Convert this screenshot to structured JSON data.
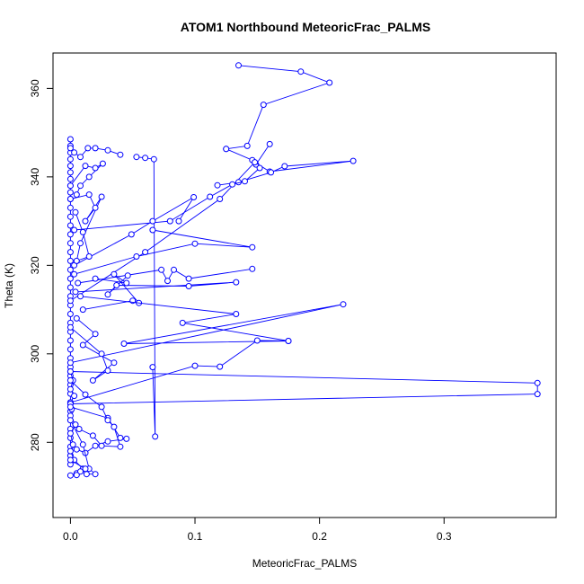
{
  "chart_data": {
    "type": "line",
    "title": "ATOM1 Northbound MeteoricFrac_PALMS",
    "xlabel": "MeteoricFrac_PALMS",
    "ylabel": "Theta (K)",
    "xlim": [
      -0.014,
      0.39
    ],
    "ylim": [
      263,
      368
    ],
    "xticks": [
      0.0,
      0.1,
      0.2,
      0.3
    ],
    "xtick_labels": [
      "0.0",
      "0.1",
      "0.2",
      "0.3"
    ],
    "yticks": [
      280,
      300,
      320,
      340,
      360
    ],
    "ytick_labels": [
      "280",
      "300",
      "320",
      "340",
      "360"
    ],
    "grid": false,
    "series_color": "#0000ff",
    "series": [
      {
        "x": [
          0.0,
          0.0,
          0.0,
          0.0,
          0.0,
          0.0,
          0.0,
          0.0,
          0.0,
          0.0,
          0.0,
          0.0,
          0.0,
          0.0,
          0.0,
          0.0,
          0.0,
          0.0,
          0.0,
          0.0,
          0.0,
          0.0,
          0.0,
          0.0,
          0.0,
          0.0,
          0.0,
          0.0,
          0.0,
          0.0,
          0.0,
          0.0,
          0.0,
          0.0,
          0.0,
          0.0,
          0.0,
          0.0,
          0.0,
          0.0
        ],
        "y": [
          348.5,
          347.0,
          345.5,
          344.0,
          342.5,
          341.0,
          339.5,
          338.0,
          336.5,
          335.0,
          333.0,
          331.0,
          329.0,
          327.0,
          325.0,
          323.0,
          321.0,
          319.0,
          317.0,
          315.0,
          313.0,
          311.0,
          309.0,
          307.0,
          305.0,
          303.0,
          301.0,
          299.0,
          297.0,
          295.0,
          293.0,
          291.0,
          289.0,
          287.0,
          285.0,
          283.0,
          281.0,
          279.0,
          277.0,
          275.0
        ]
      },
      {
        "x": [
          0.0,
          0.005,
          0.01,
          0.003,
          0.0,
          0.002,
          0.0,
          0.004,
          0.0,
          0.001,
          0.0,
          0.003,
          0.0,
          0.002,
          0.0
        ],
        "y": [
          272.5,
          273.0,
          274.0,
          276.0,
          278.0,
          279.5,
          282.0,
          284.0,
          286.0,
          287.5,
          289.0,
          290.5,
          292.0,
          294.0,
          296.0
        ]
      },
      {
        "x": [
          0.135,
          0.185,
          0.208,
          0.155,
          0.142,
          0.125
        ],
        "y": [
          365.2,
          363.8,
          361.3,
          356.3,
          347.0,
          346.3
        ]
      },
      {
        "x": [
          0.125,
          0.146,
          0.149,
          0.16
        ],
        "y": [
          346.3,
          343.8,
          342.8,
          347.4
        ]
      },
      {
        "x": [
          0.0,
          0.003,
          0.008,
          0.014,
          0.02,
          0.03,
          0.04
        ],
        "y": [
          346.5,
          345.5,
          344.5,
          346.5,
          346.5,
          346.0,
          345.0
        ]
      },
      {
        "x": [
          0.053,
          0.06,
          0.067,
          0.068,
          0.066
        ],
        "y": [
          344.5,
          344.3,
          344.0,
          281.3,
          297.0
        ]
      },
      {
        "x": [
          0.0,
          0.06,
          0.12,
          0.148,
          0.16,
          0.227,
          0.172,
          0.161,
          0.135,
          0.118
        ],
        "y": [
          312.0,
          323.0,
          335.0,
          343.3,
          341.2,
          343.6,
          342.4,
          341.0,
          338.8,
          338.1
        ]
      },
      {
        "x": [
          0.003,
          0.08,
          0.112,
          0.13,
          0.14,
          0.152
        ],
        "y": [
          328.0,
          330.0,
          335.5,
          338.3,
          339.0,
          342.0
        ]
      },
      {
        "x": [
          0.003,
          0.049,
          0.066,
          0.099,
          0.087
        ],
        "y": [
          320.0,
          327.0,
          330.0,
          335.4,
          330.0
        ]
      },
      {
        "x": [
          0.003,
          0.053,
          0.1,
          0.146,
          0.066
        ],
        "y": [
          318.0,
          322.0,
          324.9,
          324.1,
          328.0
        ]
      },
      {
        "x": [
          0.006,
          0.073,
          0.078,
          0.083,
          0.095,
          0.146
        ],
        "y": [
          316.0,
          319.0,
          316.5,
          319.0,
          317.0,
          319.2
        ]
      },
      {
        "x": [
          0.004,
          0.133,
          0.095,
          0.037,
          0.03,
          0.046
        ],
        "y": [
          314.0,
          316.2,
          315.3,
          315.5,
          313.4,
          317.7
        ]
      },
      {
        "x": [
          0.01,
          0.05,
          0.055,
          0.035,
          0.045,
          0.02
        ],
        "y": [
          310.0,
          312.0,
          311.5,
          318.0,
          316.0,
          317.0
        ]
      },
      {
        "x": [
          0.008,
          0.133,
          0.09,
          0.175,
          0.043,
          0.219,
          0.0
        ],
        "y": [
          313.0,
          309.0,
          307.0,
          302.9,
          302.3,
          311.2,
          298.0
        ]
      },
      {
        "x": [
          0.0,
          0.1,
          0.12,
          0.15,
          0.175
        ],
        "y": [
          289.0,
          297.3,
          297.1,
          303.0,
          302.9
        ]
      },
      {
        "x": [
          0.0,
          0.375,
          0.375,
          0.0
        ],
        "y": [
          296.0,
          293.4,
          290.9,
          288.7
        ]
      },
      {
        "x": [
          0.0,
          0.025,
          0.03,
          0.018,
          0.035,
          0.01,
          0.02,
          0.005
        ],
        "y": [
          306.0,
          300.0,
          296.2,
          294.0,
          298.0,
          302.0,
          304.5,
          308.0
        ]
      },
      {
        "x": [
          0.0,
          0.03,
          0.04,
          0.045,
          0.03,
          0.02,
          0.012,
          0.005
        ],
        "y": [
          288.0,
          285.5,
          281.0,
          280.8,
          280.2,
          279.2,
          277.6,
          278.4
        ]
      },
      {
        "x": [
          0.0,
          0.01,
          0.015,
          0.02,
          0.013,
          0.008,
          0.005,
          0.012,
          0.0
        ],
        "y": [
          285.0,
          279.5,
          274.0,
          272.8,
          272.8,
          273.4,
          272.6,
          274.0,
          276.0
        ]
      },
      {
        "x": [
          0.0,
          0.012,
          0.025,
          0.03,
          0.035,
          0.04,
          0.025,
          0.018,
          0.007
        ],
        "y": [
          294.0,
          290.8,
          288.0,
          285.0,
          283.5,
          279.0,
          279.2,
          281.5,
          283.0
        ]
      },
      {
        "x": [
          0.0,
          0.015,
          0.02,
          0.012,
          0.025,
          0.008,
          0.005,
          0.015,
          0.01,
          0.004
        ],
        "y": [
          335.0,
          336.0,
          333.0,
          330.0,
          335.5,
          325.0,
          321.0,
          322.0,
          327.5,
          332.0
        ]
      },
      {
        "x": [
          0.0,
          0.012,
          0.02,
          0.026,
          0.015,
          0.008,
          0.005
        ],
        "y": [
          338.0,
          342.5,
          342.0,
          343.0,
          340.0,
          338.0,
          336.0
        ]
      }
    ]
  }
}
